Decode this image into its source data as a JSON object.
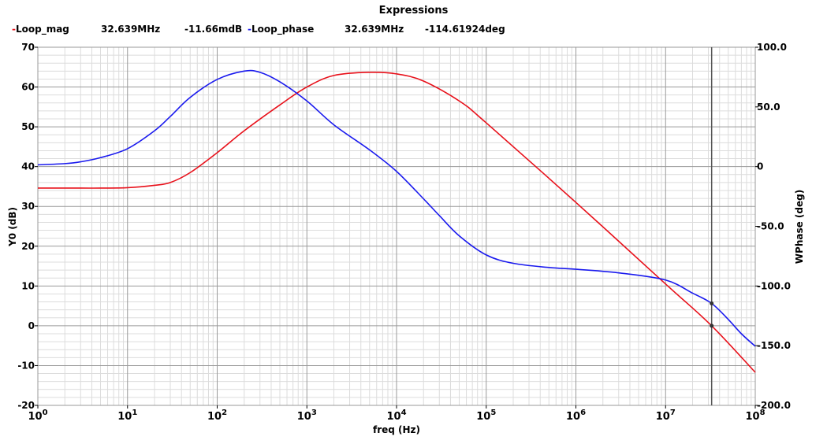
{
  "window_title": "Expressions",
  "legend": {
    "mag": {
      "name": "Loop_mag",
      "freq": "32.639MHz",
      "value": "-11.66mdB",
      "color": "#e8101a"
    },
    "phase": {
      "name": "Loop_phase",
      "freq": "32.639MHz",
      "value": "-114.61924deg",
      "color": "#1a1aee"
    }
  },
  "chart_data": {
    "type": "line",
    "xlabel": "freq (Hz)",
    "ylabel_left": "Y0 (dB)",
    "ylabel_right": "WPhase (deg)",
    "x_scale": "log",
    "xlim": [
      1,
      100000000
    ],
    "ylim_left": [
      -20,
      70
    ],
    "ylim_right": [
      -200,
      100
    ],
    "x_ticks": [
      {
        "base": "10",
        "exp": "0"
      },
      {
        "base": "10",
        "exp": "1"
      },
      {
        "base": "10",
        "exp": "2"
      },
      {
        "base": "10",
        "exp": "3"
      },
      {
        "base": "10",
        "exp": "4"
      },
      {
        "base": "10",
        "exp": "5"
      },
      {
        "base": "10",
        "exp": "6"
      },
      {
        "base": "10",
        "exp": "7"
      },
      {
        "base": "10",
        "exp": "8"
      }
    ],
    "y_ticks_left": [
      "70",
      "60",
      "50",
      "40",
      "30",
      "20",
      "10",
      "0",
      "-10",
      "-20"
    ],
    "y_ticks_right": [
      "100.0",
      "50.0",
      "0",
      "-50.0",
      "-100.0",
      "-150.0",
      "-200.0"
    ],
    "grid": true,
    "cursor_x": 32639000,
    "series": [
      {
        "name": "Loop_mag",
        "axis": "left",
        "color": "#e8101a",
        "x": [
          1,
          3,
          5,
          10,
          20,
          30,
          50,
          100,
          200,
          500,
          1000,
          2000,
          5000,
          10000,
          20000,
          50000,
          100000,
          1000000,
          10000000,
          32639000,
          100000000
        ],
        "y": [
          34.6,
          34.6,
          34.6,
          34.7,
          35.3,
          36.0,
          38.5,
          43.5,
          49.0,
          55.5,
          60.0,
          62.9,
          63.7,
          63.3,
          61.5,
          56.5,
          51.0,
          31.0,
          10.5,
          0.0,
          -11.7
        ]
      },
      {
        "name": "Loop_phase",
        "axis": "right",
        "color": "#1a1aee",
        "x": [
          1,
          2,
          3,
          5,
          10,
          20,
          30,
          50,
          100,
          200,
          300,
          500,
          1000,
          2000,
          5000,
          10000,
          20000,
          30000,
          50000,
          100000,
          200000,
          500000,
          1000000,
          3000000,
          10000000,
          20000000,
          32639000,
          50000000,
          70000000,
          100000000
        ],
        "y": [
          1.5,
          2.5,
          4.0,
          7.5,
          15.0,
          30.0,
          42.0,
          58.0,
          73.0,
          80.0,
          79.0,
          71.0,
          55.0,
          35.0,
          14.0,
          -4.0,
          -27.0,
          -41.0,
          -58.0,
          -74.0,
          -81.0,
          -84.5,
          -86.0,
          -89.0,
          -95.0,
          -106.0,
          -114.6,
          -128.0,
          -140.0,
          -150.5
        ]
      }
    ]
  }
}
